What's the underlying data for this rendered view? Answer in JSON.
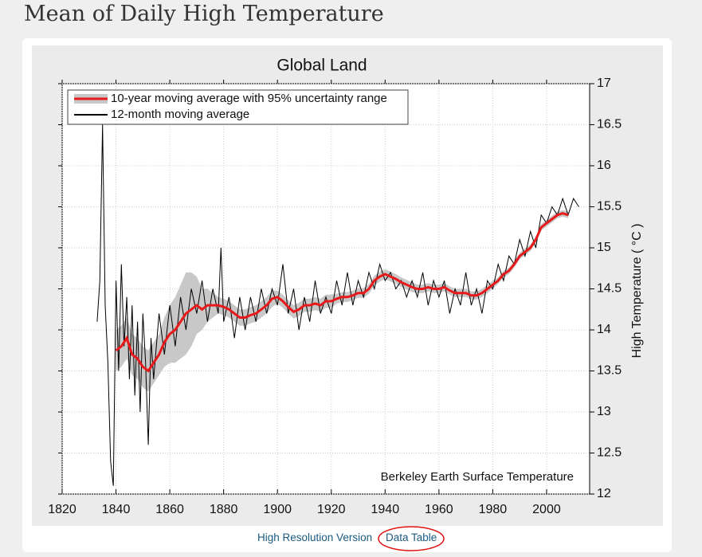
{
  "page": {
    "heading": "Mean of Daily High Temperature",
    "links": [
      "High Resolution Version",
      "Data Table"
    ]
  },
  "chart_data": {
    "type": "line",
    "title": "Global Land",
    "y_label": "High Temperature ( °C )",
    "annotation": "Berkeley Earth Surface Temperature",
    "xlim": [
      1820,
      2016
    ],
    "ylim": [
      12,
      17
    ],
    "xticks": [
      1820,
      1840,
      1860,
      1880,
      1900,
      1920,
      1940,
      1960,
      1980,
      2000
    ],
    "yticks": [
      12,
      12.5,
      13,
      13.5,
      14,
      14.5,
      15,
      15.5,
      16,
      16.5,
      17
    ],
    "grid": true,
    "legend": "upper left",
    "y_axis_side": "right",
    "series": [
      {
        "name": "10-year moving average with 95% uncertainty range",
        "color": "#e8191a",
        "band_color": "#c8c8c8",
        "x": [
          1840,
          1842,
          1844,
          1846,
          1848,
          1850,
          1852,
          1854,
          1856,
          1858,
          1860,
          1862,
          1864,
          1866,
          1868,
          1870,
          1872,
          1874,
          1876,
          1878,
          1880,
          1882,
          1884,
          1886,
          1888,
          1890,
          1892,
          1894,
          1896,
          1898,
          1900,
          1902,
          1904,
          1906,
          1908,
          1910,
          1912,
          1914,
          1916,
          1918,
          1920,
          1922,
          1924,
          1926,
          1928,
          1930,
          1932,
          1934,
          1936,
          1938,
          1940,
          1942,
          1944,
          1946,
          1948,
          1950,
          1952,
          1954,
          1956,
          1958,
          1960,
          1962,
          1964,
          1966,
          1968,
          1970,
          1972,
          1974,
          1976,
          1978,
          1980,
          1982,
          1984,
          1986,
          1988,
          1990,
          1992,
          1994,
          1996,
          1998,
          2000,
          2002,
          2004,
          2006,
          2008
        ],
        "values": [
          13.75,
          13.8,
          13.9,
          13.7,
          13.65,
          13.55,
          13.5,
          13.6,
          13.7,
          13.85,
          13.95,
          14.0,
          14.1,
          14.2,
          14.25,
          14.3,
          14.25,
          14.3,
          14.3,
          14.3,
          14.28,
          14.25,
          14.2,
          14.15,
          14.15,
          14.18,
          14.2,
          14.25,
          14.3,
          14.38,
          14.4,
          14.35,
          14.28,
          14.22,
          14.25,
          14.3,
          14.3,
          14.32,
          14.3,
          14.35,
          14.35,
          14.38,
          14.4,
          14.4,
          14.42,
          14.45,
          14.45,
          14.5,
          14.6,
          14.65,
          14.68,
          14.65,
          14.62,
          14.58,
          14.55,
          14.52,
          14.5,
          14.5,
          14.52,
          14.5,
          14.5,
          14.52,
          14.48,
          14.45,
          14.45,
          14.45,
          14.42,
          14.42,
          14.45,
          14.5,
          14.55,
          14.6,
          14.68,
          14.72,
          14.8,
          14.9,
          14.95,
          15.0,
          15.1,
          15.25,
          15.3,
          15.35,
          15.4,
          15.42,
          15.4
        ],
        "error": [
          0.25,
          0.25,
          0.25,
          0.25,
          0.25,
          0.25,
          0.25,
          0.25,
          0.25,
          0.3,
          0.35,
          0.4,
          0.45,
          0.5,
          0.45,
          0.35,
          0.25,
          0.2,
          0.15,
          0.1,
          0.1,
          0.1,
          0.1,
          0.1,
          0.1,
          0.1,
          0.1,
          0.1,
          0.1,
          0.1,
          0.08,
          0.08,
          0.08,
          0.08,
          0.08,
          0.08,
          0.08,
          0.08,
          0.08,
          0.08,
          0.08,
          0.06,
          0.06,
          0.06,
          0.06,
          0.06,
          0.06,
          0.06,
          0.06,
          0.06,
          0.06,
          0.06,
          0.06,
          0.06,
          0.06,
          0.06,
          0.05,
          0.05,
          0.05,
          0.05,
          0.05,
          0.05,
          0.05,
          0.05,
          0.05,
          0.05,
          0.05,
          0.05,
          0.05,
          0.05,
          0.05,
          0.04,
          0.04,
          0.04,
          0.04,
          0.04,
          0.04,
          0.04,
          0.04,
          0.04,
          0.04,
          0.04,
          0.04,
          0.04,
          0.04
        ]
      },
      {
        "name": "12-month moving average",
        "color": "#000000",
        "x": [
          1833,
          1834,
          1835,
          1836,
          1837,
          1838,
          1839,
          1840,
          1841,
          1842,
          1843,
          1844,
          1845,
          1846,
          1847,
          1848,
          1849,
          1850,
          1851,
          1852,
          1853,
          1854,
          1856,
          1858,
          1860,
          1862,
          1864,
          1866,
          1868,
          1870,
          1872,
          1874,
          1876,
          1878,
          1879,
          1880,
          1882,
          1884,
          1886,
          1888,
          1890,
          1892,
          1894,
          1896,
          1898,
          1900,
          1902,
          1904,
          1906,
          1908,
          1910,
          1912,
          1914,
          1916,
          1918,
          1920,
          1922,
          1924,
          1926,
          1928,
          1930,
          1932,
          1934,
          1936,
          1938,
          1940,
          1942,
          1944,
          1946,
          1948,
          1950,
          1952,
          1954,
          1956,
          1958,
          1960,
          1962,
          1964,
          1966,
          1968,
          1970,
          1972,
          1974,
          1976,
          1978,
          1980,
          1982,
          1984,
          1986,
          1988,
          1990,
          1992,
          1994,
          1996,
          1998,
          2000,
          2002,
          2004,
          2006,
          2008,
          2010,
          2012
        ],
        "values": [
          14.1,
          14.6,
          16.5,
          14.3,
          13.6,
          12.4,
          12.1,
          14.6,
          13.5,
          14.8,
          13.8,
          14.4,
          13.4,
          14.3,
          13.2,
          14.1,
          13.0,
          14.2,
          13.6,
          12.6,
          13.9,
          13.4,
          14.2,
          13.7,
          14.3,
          13.8,
          14.4,
          14.0,
          14.5,
          14.2,
          14.6,
          14.1,
          14.5,
          14.2,
          15.0,
          14.1,
          14.4,
          13.9,
          14.4,
          14.0,
          14.4,
          14.1,
          14.5,
          14.2,
          14.5,
          14.3,
          14.8,
          14.2,
          14.5,
          14.0,
          14.4,
          14.1,
          14.6,
          14.2,
          14.4,
          14.2,
          14.6,
          14.3,
          14.7,
          14.3,
          14.6,
          14.4,
          14.7,
          14.5,
          14.8,
          14.6,
          14.7,
          14.5,
          14.6,
          14.4,
          14.6,
          14.4,
          14.7,
          14.3,
          14.6,
          14.4,
          14.6,
          14.2,
          14.5,
          14.3,
          14.7,
          14.3,
          14.5,
          14.2,
          14.6,
          14.5,
          14.8,
          14.6,
          14.9,
          14.8,
          15.1,
          14.9,
          15.2,
          15.0,
          15.4,
          15.3,
          15.5,
          15.4,
          15.6,
          15.4,
          15.6,
          15.5
        ]
      }
    ]
  }
}
